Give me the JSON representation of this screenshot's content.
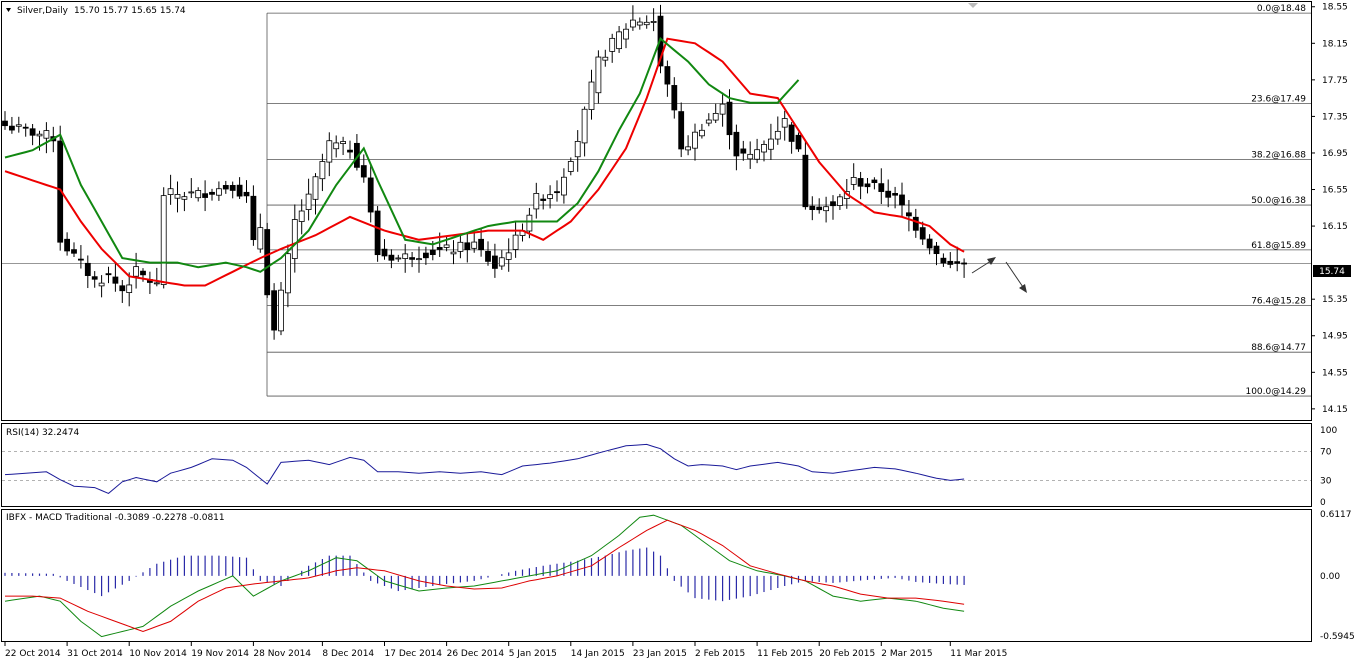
{
  "chart_data": [
    {
      "type": "candlestick",
      "header_name": "Silver,Daily",
      "header_ohlc": "15.70 15.77 15.65 15.74",
      "price_ticks": [
        "18.55",
        "18.15",
        "17.75",
        "17.35",
        "16.95",
        "16.55",
        "16.15",
        "15.74",
        "15.35",
        "14.95",
        "14.55",
        "14.15"
      ],
      "last_price_label": "15.74",
      "x_labels": [
        "22 Oct 2014",
        "31 Oct 2014",
        "10 Nov 2014",
        "19 Nov 2014",
        "28 Nov 2014",
        "8 Dec 2014",
        "17 Dec 2014",
        "26 Dec 2014",
        "5 Jan 2015",
        "14 Jan 2015",
        "23 Jan 2015",
        "2 Feb 2015",
        "11 Feb 2015",
        "20 Feb 2015",
        "2 Mar 2015",
        "11 Mar 2015"
      ],
      "fib_levels": [
        {
          "label": "0.0@18.48",
          "value": 18.48
        },
        {
          "label": "23.6@17.49",
          "value": 17.49
        },
        {
          "label": "38.2@16.88",
          "value": 16.88
        },
        {
          "label": "50.0@16.38",
          "value": 16.38
        },
        {
          "label": "61.8@15.89",
          "value": 15.89
        },
        {
          "label": "76.4@15.28",
          "value": 15.28
        },
        {
          "label": "88.6@14.77",
          "value": 14.77
        },
        {
          "label": "100.0@14.29",
          "value": 14.29
        }
      ],
      "ylim": [
        14.05,
        18.58
      ],
      "bars": 140,
      "close_anchors": [
        [
          0,
          17.25
        ],
        [
          7,
          17.12
        ],
        [
          8,
          16.0
        ],
        [
          13,
          15.55
        ],
        [
          15,
          15.6
        ],
        [
          17,
          15.45
        ],
        [
          19,
          15.65
        ],
        [
          22,
          15.5
        ],
        [
          23,
          16.5
        ],
        [
          28,
          16.5
        ],
        [
          33,
          16.6
        ],
        [
          35,
          16.45
        ],
        [
          36,
          15.95
        ],
        [
          37,
          16.15
        ],
        [
          38,
          15.45
        ],
        [
          39,
          15.0
        ],
        [
          42,
          16.2
        ],
        [
          44,
          16.45
        ],
        [
          47,
          17.05
        ],
        [
          50,
          17.0
        ],
        [
          52,
          16.7
        ],
        [
          54,
          15.85
        ],
        [
          57,
          15.8
        ],
        [
          60,
          15.85
        ],
        [
          65,
          15.9
        ],
        [
          68,
          15.95
        ],
        [
          71,
          15.7
        ],
        [
          74,
          16.0
        ],
        [
          77,
          16.45
        ],
        [
          80,
          16.55
        ],
        [
          83,
          17.1
        ],
        [
          86,
          17.95
        ],
        [
          89,
          18.25
        ],
        [
          91,
          18.4
        ],
        [
          94,
          18.4
        ],
        [
          95,
          17.9
        ],
        [
          97,
          17.45
        ],
        [
          98,
          16.95
        ],
        [
          101,
          17.25
        ],
        [
          104,
          17.45
        ],
        [
          106,
          16.95
        ],
        [
          108,
          16.9
        ],
        [
          110,
          17.05
        ],
        [
          113,
          17.3
        ],
        [
          115,
          16.95
        ],
        [
          116,
          16.4
        ],
        [
          120,
          16.35
        ],
        [
          123,
          16.65
        ],
        [
          127,
          16.55
        ],
        [
          129,
          16.45
        ],
        [
          131,
          16.25
        ],
        [
          133,
          16.05
        ],
        [
          135,
          15.85
        ],
        [
          137,
          15.72
        ],
        [
          139,
          15.74
        ]
      ],
      "ma_red_anchors": [
        [
          0,
          16.75
        ],
        [
          8,
          16.55
        ],
        [
          11,
          16.2
        ],
        [
          14,
          15.9
        ],
        [
          18,
          15.6
        ],
        [
          22,
          15.55
        ],
        [
          26,
          15.5
        ],
        [
          29,
          15.5
        ],
        [
          33,
          15.65
        ],
        [
          37,
          15.8
        ],
        [
          40,
          15.9
        ],
        [
          45,
          16.05
        ],
        [
          50,
          16.25
        ],
        [
          55,
          16.1
        ],
        [
          60,
          16.0
        ],
        [
          65,
          16.05
        ],
        [
          70,
          16.1
        ],
        [
          75,
          16.1
        ],
        [
          78,
          16.0
        ],
        [
          82,
          16.2
        ],
        [
          86,
          16.55
        ],
        [
          90,
          17.0
        ],
        [
          93,
          17.55
        ],
        [
          96,
          18.2
        ],
        [
          100,
          18.15
        ],
        [
          104,
          17.95
        ],
        [
          108,
          17.6
        ],
        [
          112,
          17.55
        ],
        [
          115,
          17.2
        ],
        [
          118,
          16.85
        ],
        [
          122,
          16.5
        ],
        [
          126,
          16.3
        ],
        [
          130,
          16.25
        ],
        [
          134,
          16.15
        ],
        [
          137,
          15.95
        ],
        [
          139,
          15.87
        ]
      ],
      "ma_green_anchors": [
        [
          0,
          16.9
        ],
        [
          4,
          16.98
        ],
        [
          8,
          17.15
        ],
        [
          11,
          16.6
        ],
        [
          14,
          16.2
        ],
        [
          17,
          15.8
        ],
        [
          21,
          15.75
        ],
        [
          25,
          15.75
        ],
        [
          28,
          15.7
        ],
        [
          32,
          15.75
        ],
        [
          35,
          15.7
        ],
        [
          37,
          15.65
        ],
        [
          40,
          15.8
        ],
        [
          44,
          16.1
        ],
        [
          48,
          16.6
        ],
        [
          52,
          17.0
        ],
        [
          54,
          16.65
        ],
        [
          58,
          16.0
        ],
        [
          62,
          15.95
        ],
        [
          66,
          16.05
        ],
        [
          70,
          16.15
        ],
        [
          74,
          16.2
        ],
        [
          77,
          16.2
        ],
        [
          80,
          16.2
        ],
        [
          83,
          16.4
        ],
        [
          86,
          16.75
        ],
        [
          89,
          17.2
        ],
        [
          92,
          17.6
        ],
        [
          95,
          18.2
        ],
        [
          99,
          17.95
        ],
        [
          102,
          17.7
        ],
        [
          105,
          17.55
        ],
        [
          108,
          17.5
        ],
        [
          112,
          17.5
        ],
        [
          115,
          17.75
        ]
      ],
      "rsi": {
        "label": "RSI(14) 32.2474",
        "ticks": [
          "100",
          "70",
          "30",
          "0"
        ],
        "levels": [
          70,
          30
        ],
        "anchors": [
          [
            0,
            38
          ],
          [
            3,
            40
          ],
          [
            6,
            42
          ],
          [
            8,
            31
          ],
          [
            10,
            22
          ],
          [
            13,
            20
          ],
          [
            15,
            12
          ],
          [
            17,
            28
          ],
          [
            19,
            34
          ],
          [
            22,
            28
          ],
          [
            24,
            40
          ],
          [
            27,
            48
          ],
          [
            30,
            60
          ],
          [
            33,
            58
          ],
          [
            35,
            48
          ],
          [
            38,
            25
          ],
          [
            40,
            55
          ],
          [
            44,
            58
          ],
          [
            47,
            52
          ],
          [
            50,
            62
          ],
          [
            52,
            58
          ],
          [
            54,
            42
          ],
          [
            57,
            42
          ],
          [
            60,
            40
          ],
          [
            63,
            42
          ],
          [
            66,
            40
          ],
          [
            69,
            42
          ],
          [
            72,
            38
          ],
          [
            75,
            50
          ],
          [
            79,
            54
          ],
          [
            83,
            60
          ],
          [
            86,
            68
          ],
          [
            90,
            78
          ],
          [
            93,
            80
          ],
          [
            95,
            74
          ],
          [
            97,
            60
          ],
          [
            99,
            50
          ],
          [
            101,
            52
          ],
          [
            104,
            50
          ],
          [
            106,
            45
          ],
          [
            108,
            50
          ],
          [
            112,
            55
          ],
          [
            115,
            50
          ],
          [
            117,
            42
          ],
          [
            120,
            40
          ],
          [
            123,
            44
          ],
          [
            126,
            48
          ],
          [
            129,
            46
          ],
          [
            132,
            40
          ],
          [
            135,
            33
          ],
          [
            137,
            30
          ],
          [
            139,
            32
          ]
        ]
      },
      "macd": {
        "label": "IBFX - MACD Traditional -0.3089 -0.2278 -0.0811",
        "ticks": [
          "0.6117",
          "0.00",
          "-0.5945"
        ],
        "ylim": [
          -0.5945,
          0.6117
        ],
        "hist_anchors": [
          [
            0,
            0.03
          ],
          [
            7,
            0.02
          ],
          [
            9,
            -0.05
          ],
          [
            14,
            -0.2
          ],
          [
            18,
            -0.05
          ],
          [
            22,
            0.12
          ],
          [
            26,
            0.2
          ],
          [
            31,
            0.2
          ],
          [
            35,
            0.18
          ],
          [
            37,
            -0.05
          ],
          [
            40,
            -0.1
          ],
          [
            44,
            0.1
          ],
          [
            47,
            0.2
          ],
          [
            50,
            0.2
          ],
          [
            53,
            -0.05
          ],
          [
            57,
            -0.15
          ],
          [
            60,
            -0.12
          ],
          [
            64,
            -0.08
          ],
          [
            68,
            -0.05
          ],
          [
            71,
            0.0
          ],
          [
            74,
            0.05
          ],
          [
            78,
            0.1
          ],
          [
            83,
            0.15
          ],
          [
            87,
            0.2
          ],
          [
            90,
            0.25
          ],
          [
            93,
            0.28
          ],
          [
            95,
            0.2
          ],
          [
            97,
            -0.05
          ],
          [
            100,
            -0.22
          ],
          [
            104,
            -0.25
          ],
          [
            108,
            -0.2
          ],
          [
            113,
            -0.1
          ],
          [
            116,
            -0.05
          ],
          [
            120,
            -0.07
          ],
          [
            125,
            -0.04
          ],
          [
            129,
            -0.02
          ],
          [
            132,
            -0.06
          ],
          [
            136,
            -0.08
          ],
          [
            139,
            -0.09
          ]
        ],
        "main_anchors": [
          [
            0,
            -0.25
          ],
          [
            5,
            -0.2
          ],
          [
            8,
            -0.25
          ],
          [
            11,
            -0.45
          ],
          [
            14,
            -0.6
          ],
          [
            17,
            -0.55
          ],
          [
            20,
            -0.5
          ],
          [
            24,
            -0.3
          ],
          [
            28,
            -0.15
          ],
          [
            33,
            0.0
          ],
          [
            36,
            -0.2
          ],
          [
            40,
            -0.05
          ],
          [
            44,
            0.05
          ],
          [
            48,
            0.18
          ],
          [
            51,
            0.15
          ],
          [
            55,
            -0.05
          ],
          [
            60,
            -0.15
          ],
          [
            64,
            -0.12
          ],
          [
            68,
            -0.1
          ],
          [
            72,
            -0.05
          ],
          [
            76,
            0.0
          ],
          [
            80,
            0.05
          ],
          [
            85,
            0.2
          ],
          [
            89,
            0.4
          ],
          [
            92,
            0.58
          ],
          [
            94,
            0.6
          ],
          [
            98,
            0.5
          ],
          [
            101,
            0.35
          ],
          [
            105,
            0.15
          ],
          [
            109,
            0.05
          ],
          [
            113,
            0.0
          ],
          [
            116,
            -0.05
          ],
          [
            120,
            -0.2
          ],
          [
            124,
            -0.25
          ],
          [
            128,
            -0.22
          ],
          [
            132,
            -0.25
          ],
          [
            136,
            -0.32
          ],
          [
            139,
            -0.35
          ]
        ],
        "signal_anchors": [
          [
            0,
            -0.2
          ],
          [
            4,
            -0.2
          ],
          [
            8,
            -0.22
          ],
          [
            12,
            -0.35
          ],
          [
            16,
            -0.45
          ],
          [
            20,
            -0.55
          ],
          [
            24,
            -0.45
          ],
          [
            28,
            -0.25
          ],
          [
            32,
            -0.12
          ],
          [
            36,
            -0.08
          ],
          [
            40,
            -0.05
          ],
          [
            44,
            -0.02
          ],
          [
            48,
            0.05
          ],
          [
            51,
            0.08
          ],
          [
            55,
            0.05
          ],
          [
            60,
            -0.05
          ],
          [
            64,
            -0.1
          ],
          [
            68,
            -0.13
          ],
          [
            72,
            -0.12
          ],
          [
            76,
            -0.05
          ],
          [
            80,
            0.0
          ],
          [
            85,
            0.1
          ],
          [
            89,
            0.28
          ],
          [
            93,
            0.45
          ],
          [
            96,
            0.55
          ],
          [
            100,
            0.45
          ],
          [
            104,
            0.3
          ],
          [
            108,
            0.1
          ],
          [
            112,
            0.02
          ],
          [
            116,
            -0.05
          ],
          [
            120,
            -0.1
          ],
          [
            124,
            -0.18
          ],
          [
            128,
            -0.22
          ],
          [
            132,
            -0.22
          ],
          [
            136,
            -0.25
          ],
          [
            139,
            -0.28
          ]
        ]
      }
    }
  ],
  "colors": {
    "ma_red": "#ee0000",
    "ma_green": "#118811",
    "rsi_line": "#1a1a99",
    "macd_hist": "#2a2aa8",
    "macd_main": "#118811",
    "macd_signal": "#dd0000",
    "fib": "#555555"
  }
}
